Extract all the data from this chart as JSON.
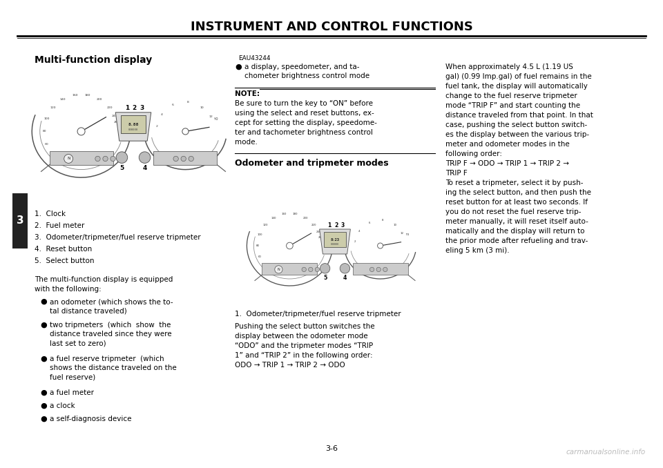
{
  "bg_color": "#ffffff",
  "page_width": 9.6,
  "page_height": 6.78,
  "title": "INSTRUMENT AND CONTROL FUNCTIONS",
  "section_title": "Multi-function display",
  "section_id": "EAU43244",
  "page_number": "3-6",
  "left_tab_text": "3",
  "numbered_items_left": [
    "1.  Clock",
    "2.  Fuel meter",
    "3.  Odometer/tripmeter/fuel reserve tripmeter",
    "4.  Reset button",
    "5.  Select button"
  ],
  "body_intro": "The multi-function display is equipped\nwith the following:",
  "bullet_items_left": [
    "an odometer (which shows the to-\ntal distance traveled)",
    "two tripmeters  (which  show  the\ndistance traveled since they were\nlast set to zero)",
    "a fuel reserve tripmeter  (which\nshows the distance traveled on the\nfuel reserve)",
    "a fuel meter",
    "a clock",
    "a self-diagnosis device"
  ],
  "bullet_items_mid": "a display, speedometer, and ta-\nchometer brightness control mode",
  "note_label": "NOTE:",
  "note_text": "Be sure to turn the key to “ON” before\nusing the select and reset buttons, ex-\ncept for setting the display, speedome-\nter and tachometer brightness control\nmode.",
  "odometer_title": "Odometer and tripmeter modes",
  "odometer_caption": "1.  Odometer/tripmeter/fuel reserve tripmeter",
  "mid_body_text": "Pushing the select button switches the\ndisplay between the odometer mode\n“ODO” and the tripmeter modes “TRIP\n1” and “TRIP 2” in the following order:\nODO → TRIP 1 → TRIP 2 → ODO",
  "right_body_text": "When approximately 4.5 L (1.19 US\ngal) (0.99 Imp.gal) of fuel remains in the\nfuel tank, the display will automatically\nchange to the fuel reserve tripmeter\nmode “TRIP F” and start counting the\ndistance traveled from that point. In that\ncase, pushing the select button switch-\nes the display between the various trip-\nmeter and odometer modes in the\nfollowing order:\nTRIP F → ODO → TRIP 1 → TRIP 2 →\nTRIP F\nTo reset a tripmeter, select it by push-\ning the select button, and then push the\nreset button for at least two seconds. If\nyou do not reset the fuel reserve trip-\nmeter manually, it will reset itself auto-\nmatically and the display will return to\nthe prior mode after refueling and trav-\neling 5 km (3 mi).",
  "watermark": "carmanualsonline.info"
}
